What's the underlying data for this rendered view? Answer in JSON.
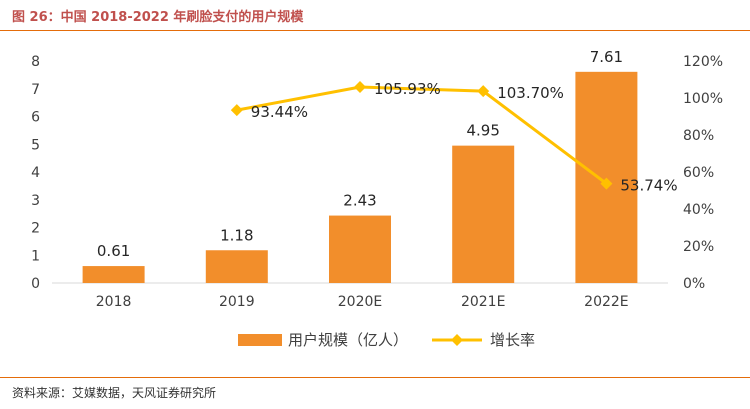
{
  "figure": {
    "title": "图 26：中国 2018-2022 年刷脸支付的用户规模",
    "source": "资料来源：艾媒数据，天风证券研究所"
  },
  "colors": {
    "bar": "#f28e2b",
    "line": "#ffc000",
    "rule": "#e46c0a",
    "title": "#c0504d"
  },
  "chart_data": {
    "type": "bar",
    "categories": [
      "2018",
      "2019",
      "2020E",
      "2021E",
      "2022E"
    ],
    "series": [
      {
        "name": "用户规模（亿人）",
        "type": "bar",
        "axis": "left",
        "values": [
          0.61,
          1.18,
          2.43,
          4.95,
          7.61
        ],
        "labels": [
          "0.61",
          "1.18",
          "2.43",
          "4.95",
          "7.61"
        ]
      },
      {
        "name": "增长率",
        "type": "line",
        "axis": "right",
        "values": [
          null,
          93.44,
          105.93,
          103.7,
          53.74
        ],
        "labels": [
          "",
          "93.44%",
          "105.93%",
          "103.70%",
          "53.74%"
        ]
      }
    ],
    "y_left": {
      "ylim": [
        0,
        8
      ],
      "ticks": [
        "0",
        "1",
        "2",
        "3",
        "4",
        "5",
        "6",
        "7",
        "8"
      ]
    },
    "y_right": {
      "ylim": [
        0,
        120
      ],
      "ticks": [
        "0%",
        "20%",
        "40%",
        "60%",
        "80%",
        "100%",
        "120%"
      ]
    },
    "legend_position": "bottom",
    "grid": false
  }
}
